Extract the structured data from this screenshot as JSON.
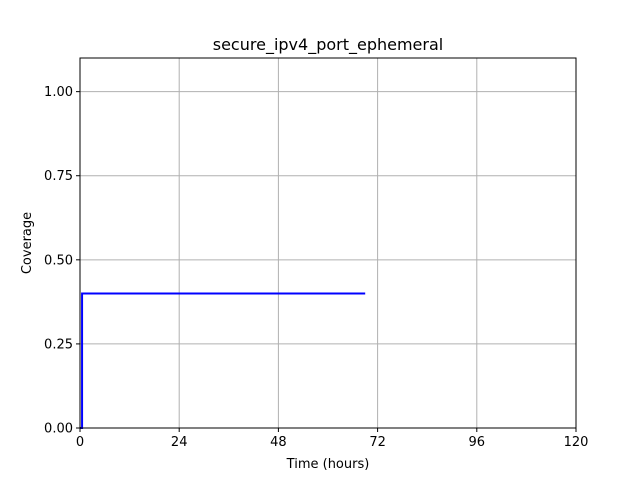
{
  "chart_data": {
    "type": "line",
    "title": "secure_ipv4_port_ephemeral",
    "xlabel": "Time (hours)",
    "ylabel": "Coverage",
    "xlim": [
      0,
      120
    ],
    "ylim": [
      0,
      1.1
    ],
    "x_ticks": [
      0,
      24,
      48,
      72,
      96,
      120
    ],
    "x_tick_labels": [
      "0",
      "24",
      "48",
      "72",
      "96",
      "120"
    ],
    "y_ticks": [
      0,
      0.25,
      0.5,
      0.75,
      1.0
    ],
    "y_tick_labels": [
      "0.00",
      "0.25",
      "0.50",
      "0.75",
      "1.00"
    ],
    "grid": true,
    "series": [
      {
        "color": "#0000ff",
        "step": true,
        "x": [
          0,
          0.5,
          0.5,
          69
        ],
        "y": [
          0,
          0,
          0.4,
          0.4
        ]
      }
    ]
  }
}
